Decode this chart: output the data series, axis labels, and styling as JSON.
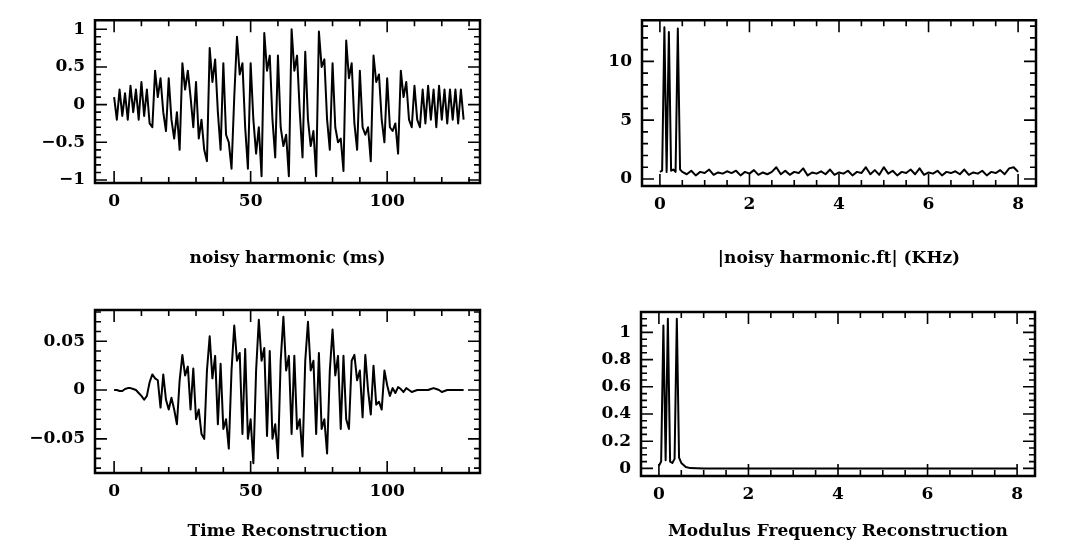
{
  "chart_data": [
    {
      "type": "line",
      "xlabel": "noisy harmonic (ms)",
      "color": "#000000",
      "marker": "none",
      "xlim": [
        -7,
        134
      ],
      "ylim": [
        -1.04,
        1.12
      ],
      "xticks": [
        0,
        {
          "value": 10,
          "label": null
        },
        {
          "value": 20,
          "label": null
        },
        {
          "value": 30,
          "label": null
        },
        {
          "value": 40,
          "label": null
        },
        50,
        {
          "value": 60,
          "label": null
        },
        {
          "value": 70,
          "label": null
        },
        {
          "value": 80,
          "label": null
        },
        {
          "value": 90,
          "label": null
        },
        100,
        {
          "value": 110,
          "label": null
        },
        {
          "value": 120,
          "label": null
        },
        {
          "value": 130,
          "label": null
        }
      ],
      "yticks": [
        {
          "value": -1,
          "label": "−1"
        },
        {
          "value": -0.9,
          "label": null
        },
        {
          "value": -0.8,
          "label": null
        },
        {
          "value": -0.7,
          "label": null
        },
        {
          "value": -0.6,
          "label": null
        },
        {
          "value": -0.5,
          "label": "−0.5"
        },
        {
          "value": -0.4,
          "label": null
        },
        {
          "value": -0.3,
          "label": null
        },
        {
          "value": -0.2,
          "label": null
        },
        {
          "value": -0.1,
          "label": null
        },
        0,
        {
          "value": 0.1,
          "label": null
        },
        {
          "value": 0.2,
          "label": null
        },
        {
          "value": 0.3,
          "label": null
        },
        {
          "value": 0.4,
          "label": null
        },
        0.5,
        {
          "value": 0.6,
          "label": null
        },
        {
          "value": 0.7,
          "label": null
        },
        {
          "value": 0.8,
          "label": null
        },
        {
          "value": 0.9,
          "label": null
        },
        1
      ],
      "x": [
        0,
        1,
        2,
        3,
        4,
        5,
        6,
        7,
        8,
        9,
        10,
        11,
        12,
        13,
        14,
        15,
        16,
        17,
        18,
        19,
        20,
        21,
        22,
        23,
        24,
        25,
        26,
        27,
        28,
        29,
        30,
        31,
        32,
        33,
        34,
        35,
        36,
        37,
        38,
        39,
        40,
        41,
        42,
        43,
        44,
        45,
        46,
        47,
        48,
        49,
        50,
        51,
        52,
        53,
        54,
        55,
        56,
        57,
        58,
        59,
        60,
        61,
        62,
        63,
        64,
        65,
        66,
        67,
        68,
        69,
        70,
        71,
        72,
        73,
        74,
        75,
        76,
        77,
        78,
        79,
        80,
        81,
        82,
        83,
        84,
        85,
        86,
        87,
        88,
        89,
        90,
        91,
        92,
        93,
        94,
        95,
        96,
        97,
        98,
        99,
        100,
        101,
        102,
        103,
        104,
        105,
        106,
        107,
        108,
        109,
        110,
        111,
        112,
        113,
        114,
        115,
        116,
        117,
        118,
        119,
        120,
        121,
        122,
        123,
        124,
        125,
        126,
        127,
        128
      ],
      "values": [
        0.1,
        -0.2,
        0.2,
        -0.15,
        0.15,
        -0.2,
        0.25,
        -0.1,
        0.2,
        -0.2,
        0.3,
        -0.15,
        0.2,
        -0.25,
        -0.3,
        0.45,
        0.1,
        0.35,
        -0.1,
        -0.35,
        0.35,
        -0.2,
        -0.45,
        -0.1,
        -0.6,
        0.55,
        0.2,
        0.45,
        0.1,
        -0.3,
        0.3,
        -0.45,
        -0.2,
        -0.6,
        -0.75,
        0.75,
        0.3,
        0.6,
        -0.1,
        -0.6,
        0.55,
        -0.4,
        -0.5,
        -0.85,
        0.1,
        0.9,
        0.4,
        0.55,
        -0.3,
        -0.85,
        0.55,
        -0.2,
        -0.65,
        -0.3,
        -0.95,
        0.95,
        0.45,
        0.65,
        -0.2,
        -0.7,
        0.65,
        -0.3,
        -0.55,
        -0.4,
        -0.95,
        1.0,
        0.45,
        0.65,
        -0.1,
        -0.7,
        0.7,
        -0.2,
        -0.55,
        -0.35,
        -0.95,
        0.97,
        0.5,
        0.6,
        -0.2,
        -0.6,
        0.55,
        -0.3,
        -0.5,
        -0.45,
        -0.88,
        0.85,
        0.35,
        0.55,
        -0.25,
        -0.6,
        0.45,
        -0.3,
        -0.4,
        -0.3,
        -0.75,
        0.65,
        0.3,
        0.4,
        -0.2,
        -0.5,
        0.35,
        -0.3,
        -0.35,
        -0.25,
        -0.65,
        0.45,
        0.1,
        0.3,
        -0.2,
        -0.3,
        0.25,
        -0.2,
        -0.3,
        0.2,
        -0.25,
        0.25,
        -0.2,
        0.2,
        -0.3,
        0.25,
        -0.2,
        0.2,
        -0.25,
        0.2,
        -0.2,
        0.2,
        -0.25,
        0.2,
        -0.2
      ]
    },
    {
      "type": "line",
      "xlabel": "|noisy harmonic.ft| (KHz)",
      "color": "#000000",
      "marker": "none",
      "xlim": [
        -0.4,
        8.4
      ],
      "ylim": [
        -0.6,
        13.5
      ],
      "xticks": [
        0,
        {
          "value": 0.5,
          "label": null
        },
        {
          "value": 1,
          "label": null
        },
        {
          "value": 1.5,
          "label": null
        },
        2,
        {
          "value": 2.5,
          "label": null
        },
        {
          "value": 3,
          "label": null
        },
        {
          "value": 3.5,
          "label": null
        },
        4,
        {
          "value": 4.5,
          "label": null
        },
        {
          "value": 5,
          "label": null
        },
        {
          "value": 5.5,
          "label": null
        },
        6,
        {
          "value": 6.5,
          "label": null
        },
        {
          "value": 7,
          "label": null
        },
        {
          "value": 7.5,
          "label": null
        },
        8
      ],
      "yticks": [
        0,
        {
          "value": 1,
          "label": null
        },
        {
          "value": 2,
          "label": null
        },
        {
          "value": 3,
          "label": null
        },
        {
          "value": 4,
          "label": null
        },
        5,
        {
          "value": 6,
          "label": null
        },
        {
          "value": 7,
          "label": null
        },
        {
          "value": 8,
          "label": null
        },
        {
          "value": 9,
          "label": null
        },
        10,
        {
          "value": 11,
          "label": null
        },
        {
          "value": 12,
          "label": null
        },
        {
          "value": 13,
          "label": null
        }
      ],
      "x": [
        0,
        0.05,
        0.1,
        0.15,
        0.2,
        0.25,
        0.3,
        0.35,
        0.4,
        0.45,
        0.5,
        0.6,
        0.7,
        0.8,
        0.9,
        1,
        1.1,
        1.2,
        1.3,
        1.4,
        1.5,
        1.6,
        1.7,
        1.8,
        1.9,
        2,
        2.1,
        2.2,
        2.3,
        2.4,
        2.5,
        2.6,
        2.7,
        2.8,
        2.9,
        3,
        3.1,
        3.2,
        3.3,
        3.4,
        3.5,
        3.6,
        3.7,
        3.8,
        3.9,
        4,
        4.1,
        4.2,
        4.3,
        4.4,
        4.5,
        4.6,
        4.7,
        4.8,
        4.9,
        5,
        5.1,
        5.2,
        5.3,
        5.4,
        5.5,
        5.6,
        5.7,
        5.8,
        5.9,
        6,
        6.1,
        6.2,
        6.3,
        6.4,
        6.5,
        6.6,
        6.7,
        6.8,
        6.9,
        7,
        7.1,
        7.2,
        7.3,
        7.4,
        7.5,
        7.6,
        7.7,
        7.8,
        7.9,
        8
      ],
      "values": [
        0.6,
        0.7,
        12.9,
        0.6,
        12.5,
        0.7,
        0.8,
        0.6,
        12.8,
        0.8,
        0.6,
        0.4,
        0.7,
        0.3,
        0.6,
        0.5,
        0.8,
        0.35,
        0.55,
        0.45,
        0.65,
        0.5,
        0.7,
        0.3,
        0.6,
        0.45,
        0.75,
        0.35,
        0.55,
        0.4,
        0.6,
        1.0,
        0.4,
        0.7,
        0.35,
        0.6,
        0.5,
        0.9,
        0.3,
        0.55,
        0.45,
        0.65,
        0.4,
        0.8,
        0.35,
        0.55,
        0.45,
        0.7,
        0.3,
        0.6,
        0.5,
        1.0,
        0.4,
        0.75,
        0.35,
        1.0,
        0.45,
        0.7,
        0.3,
        0.6,
        0.5,
        0.8,
        0.4,
        0.9,
        0.35,
        0.55,
        0.45,
        0.7,
        0.3,
        0.6,
        0.5,
        0.65,
        0.4,
        0.8,
        0.35,
        0.55,
        0.45,
        0.7,
        0.3,
        0.6,
        0.5,
        0.75,
        0.4,
        0.9,
        1.0,
        0.6
      ]
    },
    {
      "type": "line",
      "xlabel": "Time Reconstruction",
      "color": "#000000",
      "marker": "none",
      "xlim": [
        -7,
        134
      ],
      "ylim": [
        -0.085,
        0.082
      ],
      "xticks": [
        0,
        {
          "value": 10,
          "label": null
        },
        {
          "value": 20,
          "label": null
        },
        {
          "value": 30,
          "label": null
        },
        {
          "value": 40,
          "label": null
        },
        50,
        {
          "value": 60,
          "label": null
        },
        {
          "value": 70,
          "label": null
        },
        {
          "value": 80,
          "label": null
        },
        {
          "value": 90,
          "label": null
        },
        100,
        {
          "value": 110,
          "label": null
        },
        {
          "value": 120,
          "label": null
        },
        {
          "value": 130,
          "label": null
        }
      ],
      "yticks": [
        {
          "value": -0.08,
          "label": null
        },
        {
          "value": -0.07,
          "label": null
        },
        {
          "value": -0.06,
          "label": null
        },
        {
          "value": -0.05,
          "label": "−0.05"
        },
        {
          "value": -0.04,
          "label": null
        },
        {
          "value": -0.03,
          "label": null
        },
        {
          "value": -0.02,
          "label": null
        },
        {
          "value": -0.01,
          "label": null
        },
        0,
        {
          "value": 0.01,
          "label": null
        },
        {
          "value": 0.02,
          "label": null
        },
        {
          "value": 0.03,
          "label": null
        },
        {
          "value": 0.04,
          "label": null
        },
        0.05,
        {
          "value": 0.06,
          "label": null
        },
        {
          "value": 0.07,
          "label": null
        },
        {
          "value": 0.08,
          "label": null
        }
      ],
      "x": [
        0,
        1,
        2,
        3,
        4,
        5,
        6,
        7,
        8,
        9,
        10,
        11,
        12,
        13,
        14,
        15,
        16,
        17,
        18,
        19,
        20,
        21,
        22,
        23,
        24,
        25,
        26,
        27,
        28,
        29,
        30,
        31,
        32,
        33,
        34,
        35,
        36,
        37,
        38,
        39,
        40,
        41,
        42,
        43,
        44,
        45,
        46,
        47,
        48,
        49,
        50,
        51,
        52,
        53,
        54,
        55,
        56,
        57,
        58,
        59,
        60,
        61,
        62,
        63,
        64,
        65,
        66,
        67,
        68,
        69,
        70,
        71,
        72,
        73,
        74,
        75,
        76,
        77,
        78,
        79,
        80,
        81,
        82,
        83,
        84,
        85,
        86,
        87,
        88,
        89,
        90,
        91,
        92,
        93,
        94,
        95,
        96,
        97,
        98,
        99,
        100,
        101,
        102,
        103,
        104,
        105,
        106,
        107,
        108,
        109,
        110,
        111,
        112,
        113,
        114,
        115,
        116,
        117,
        118,
        119,
        120,
        121,
        122,
        123,
        124,
        125,
        126,
        127,
        128
      ],
      "values": [
        0,
        0,
        -0.001,
        -0.001,
        0.001,
        0.002,
        0.002,
        0.001,
        0,
        -0.003,
        -0.006,
        -0.01,
        -0.006,
        0.008,
        0.016,
        0.012,
        0.01,
        -0.018,
        0.016,
        -0.01,
        -0.02,
        -0.008,
        -0.02,
        -0.035,
        0.01,
        0.036,
        0.015,
        0.024,
        -0.02,
        0.022,
        -0.03,
        -0.02,
        -0.045,
        -0.05,
        0.02,
        0.055,
        0.012,
        0.035,
        -0.035,
        0.027,
        -0.04,
        -0.03,
        -0.06,
        0.02,
        0.066,
        0.03,
        0.038,
        -0.045,
        0.042,
        -0.05,
        -0.03,
        -0.075,
        0.02,
        0.072,
        0.03,
        0.043,
        -0.047,
        0.04,
        -0.05,
        -0.035,
        -0.07,
        0.03,
        0.075,
        0.02,
        0.035,
        -0.045,
        0.035,
        -0.04,
        -0.03,
        -0.068,
        0.03,
        0.07,
        0.02,
        0.03,
        -0.045,
        0.038,
        -0.04,
        -0.03,
        -0.065,
        0.02,
        0.062,
        0.015,
        0.035,
        -0.04,
        0.035,
        -0.03,
        -0.04,
        0.03,
        0.036,
        0.01,
        0.02,
        -0.028,
        0.036,
        0,
        -0.025,
        0.025,
        -0.015,
        -0.012,
        -0.02,
        0.02,
        0.005,
        -0.006,
        0.002,
        -0.003,
        0.003,
        0.001,
        -0.002,
        0.002,
        0,
        -0.002,
        -0.001,
        0,
        0,
        0,
        0,
        0,
        0.001,
        0.002,
        0.001,
        0,
        -0.002,
        -0.001,
        0,
        0,
        0,
        0,
        0,
        0,
        0
      ]
    },
    {
      "type": "line",
      "xlabel": "Modulus Frequency Reconstruction",
      "color": "#000000",
      "marker": "none",
      "xlim": [
        -0.4,
        8.4
      ],
      "ylim": [
        -0.056,
        1.15
      ],
      "xticks": [
        0,
        {
          "value": 0.5,
          "label": null
        },
        {
          "value": 1,
          "label": null
        },
        {
          "value": 1.5,
          "label": null
        },
        2,
        {
          "value": 2.5,
          "label": null
        },
        {
          "value": 3,
          "label": null
        },
        {
          "value": 3.5,
          "label": null
        },
        4,
        {
          "value": 4.5,
          "label": null
        },
        {
          "value": 5,
          "label": null
        },
        {
          "value": 5.5,
          "label": null
        },
        6,
        {
          "value": 6.5,
          "label": null
        },
        {
          "value": 7,
          "label": null
        },
        {
          "value": 7.5,
          "label": null
        },
        8
      ],
      "yticks": [
        0,
        {
          "value": 0.05,
          "label": null
        },
        {
          "value": 0.1,
          "label": null
        },
        {
          "value": 0.15,
          "label": null
        },
        0.2,
        {
          "value": 0.25,
          "label": null
        },
        {
          "value": 0.3,
          "label": null
        },
        {
          "value": 0.35,
          "label": null
        },
        0.4,
        {
          "value": 0.45,
          "label": null
        },
        {
          "value": 0.5,
          "label": null
        },
        {
          "value": 0.55,
          "label": null
        },
        0.6,
        {
          "value": 0.65,
          "label": null
        },
        {
          "value": 0.7,
          "label": null
        },
        {
          "value": 0.75,
          "label": null
        },
        0.8,
        {
          "value": 0.85,
          "label": null
        },
        {
          "value": 0.9,
          "label": null
        },
        {
          "value": 0.95,
          "label": null
        },
        1,
        {
          "value": 1.05,
          "label": null
        },
        {
          "value": 1.1,
          "label": null
        }
      ],
      "x": [
        0,
        0.05,
        0.1,
        0.15,
        0.2,
        0.25,
        0.3,
        0.35,
        0.4,
        0.45,
        0.5,
        0.6,
        0.7,
        1,
        2,
        3,
        4,
        5,
        6,
        7,
        8
      ],
      "values": [
        0.02,
        0.05,
        1.05,
        0.06,
        1.1,
        0.05,
        0.04,
        0.07,
        1.1,
        0.08,
        0.04,
        0.01,
        0.002,
        0,
        0,
        0,
        0,
        0,
        0,
        0,
        0
      ]
    }
  ]
}
